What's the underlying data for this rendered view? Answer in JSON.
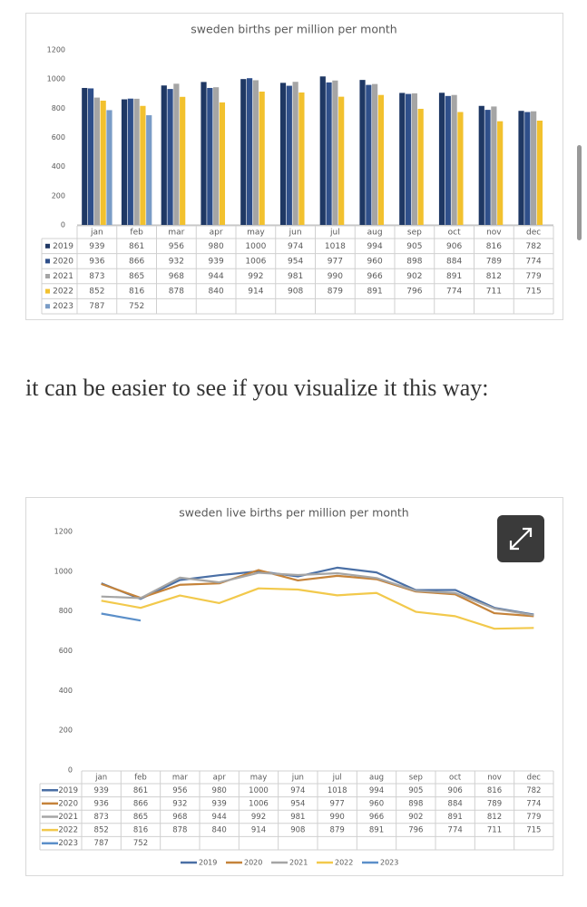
{
  "paragraph": "it can be easier to see if you visualize it this way:",
  "chart_data": [
    {
      "type": "bar",
      "title": "sweden births per million per month",
      "categories": [
        "jan",
        "feb",
        "mar",
        "apr",
        "may",
        "jun",
        "jul",
        "aug",
        "sep",
        "oct",
        "nov",
        "dec"
      ],
      "series": [
        {
          "name": "2019",
          "color": "#1f3864",
          "values": [
            939,
            861,
            956,
            980,
            1000,
            974,
            1018,
            994,
            905,
            906,
            816,
            782
          ]
        },
        {
          "name": "2020",
          "color": "#2f4f8a",
          "values": [
            936,
            866,
            932,
            939,
            1006,
            954,
            977,
            960,
            898,
            884,
            789,
            774
          ]
        },
        {
          "name": "2021",
          "color": "#a5a5a5",
          "values": [
            873,
            865,
            968,
            944,
            992,
            981,
            990,
            966,
            902,
            891,
            812,
            779
          ]
        },
        {
          "name": "2022",
          "color": "#f2c12e",
          "values": [
            852,
            816,
            878,
            840,
            914,
            908,
            879,
            891,
            796,
            774,
            711,
            715
          ]
        },
        {
          "name": "2023",
          "color": "#7a9cc6",
          "values": [
            787,
            752,
            null,
            null,
            null,
            null,
            null,
            null,
            null,
            null,
            null,
            null
          ]
        }
      ],
      "ylim": [
        0,
        1200
      ],
      "yticks": [
        0,
        200,
        400,
        600,
        800,
        1000,
        1200
      ],
      "grid": false
    },
    {
      "type": "line",
      "title": "sweden live births per million per month",
      "categories": [
        "jan",
        "feb",
        "mar",
        "apr",
        "may",
        "jun",
        "jul",
        "aug",
        "sep",
        "oct",
        "nov",
        "dec"
      ],
      "series": [
        {
          "name": "2019",
          "color": "#4a6fa5",
          "values": [
            939,
            861,
            956,
            980,
            1000,
            974,
            1018,
            994,
            905,
            906,
            816,
            782
          ]
        },
        {
          "name": "2020",
          "color": "#c5833a",
          "values": [
            936,
            866,
            932,
            939,
            1006,
            954,
            977,
            960,
            898,
            884,
            789,
            774
          ]
        },
        {
          "name": "2021",
          "color": "#a5a5a5",
          "values": [
            873,
            865,
            968,
            944,
            992,
            981,
            990,
            966,
            902,
            891,
            812,
            779
          ]
        },
        {
          "name": "2022",
          "color": "#f2c94c",
          "values": [
            852,
            816,
            878,
            840,
            914,
            908,
            879,
            891,
            796,
            774,
            711,
            715
          ]
        },
        {
          "name": "2023",
          "color": "#5b8fc9",
          "values": [
            787,
            752,
            null,
            null,
            null,
            null,
            null,
            null,
            null,
            null,
            null,
            null
          ]
        }
      ],
      "ylim": [
        0,
        1200
      ],
      "yticks": [
        0,
        200,
        400,
        600,
        800,
        1000,
        1200
      ],
      "grid": false,
      "legend": "bottom"
    }
  ]
}
